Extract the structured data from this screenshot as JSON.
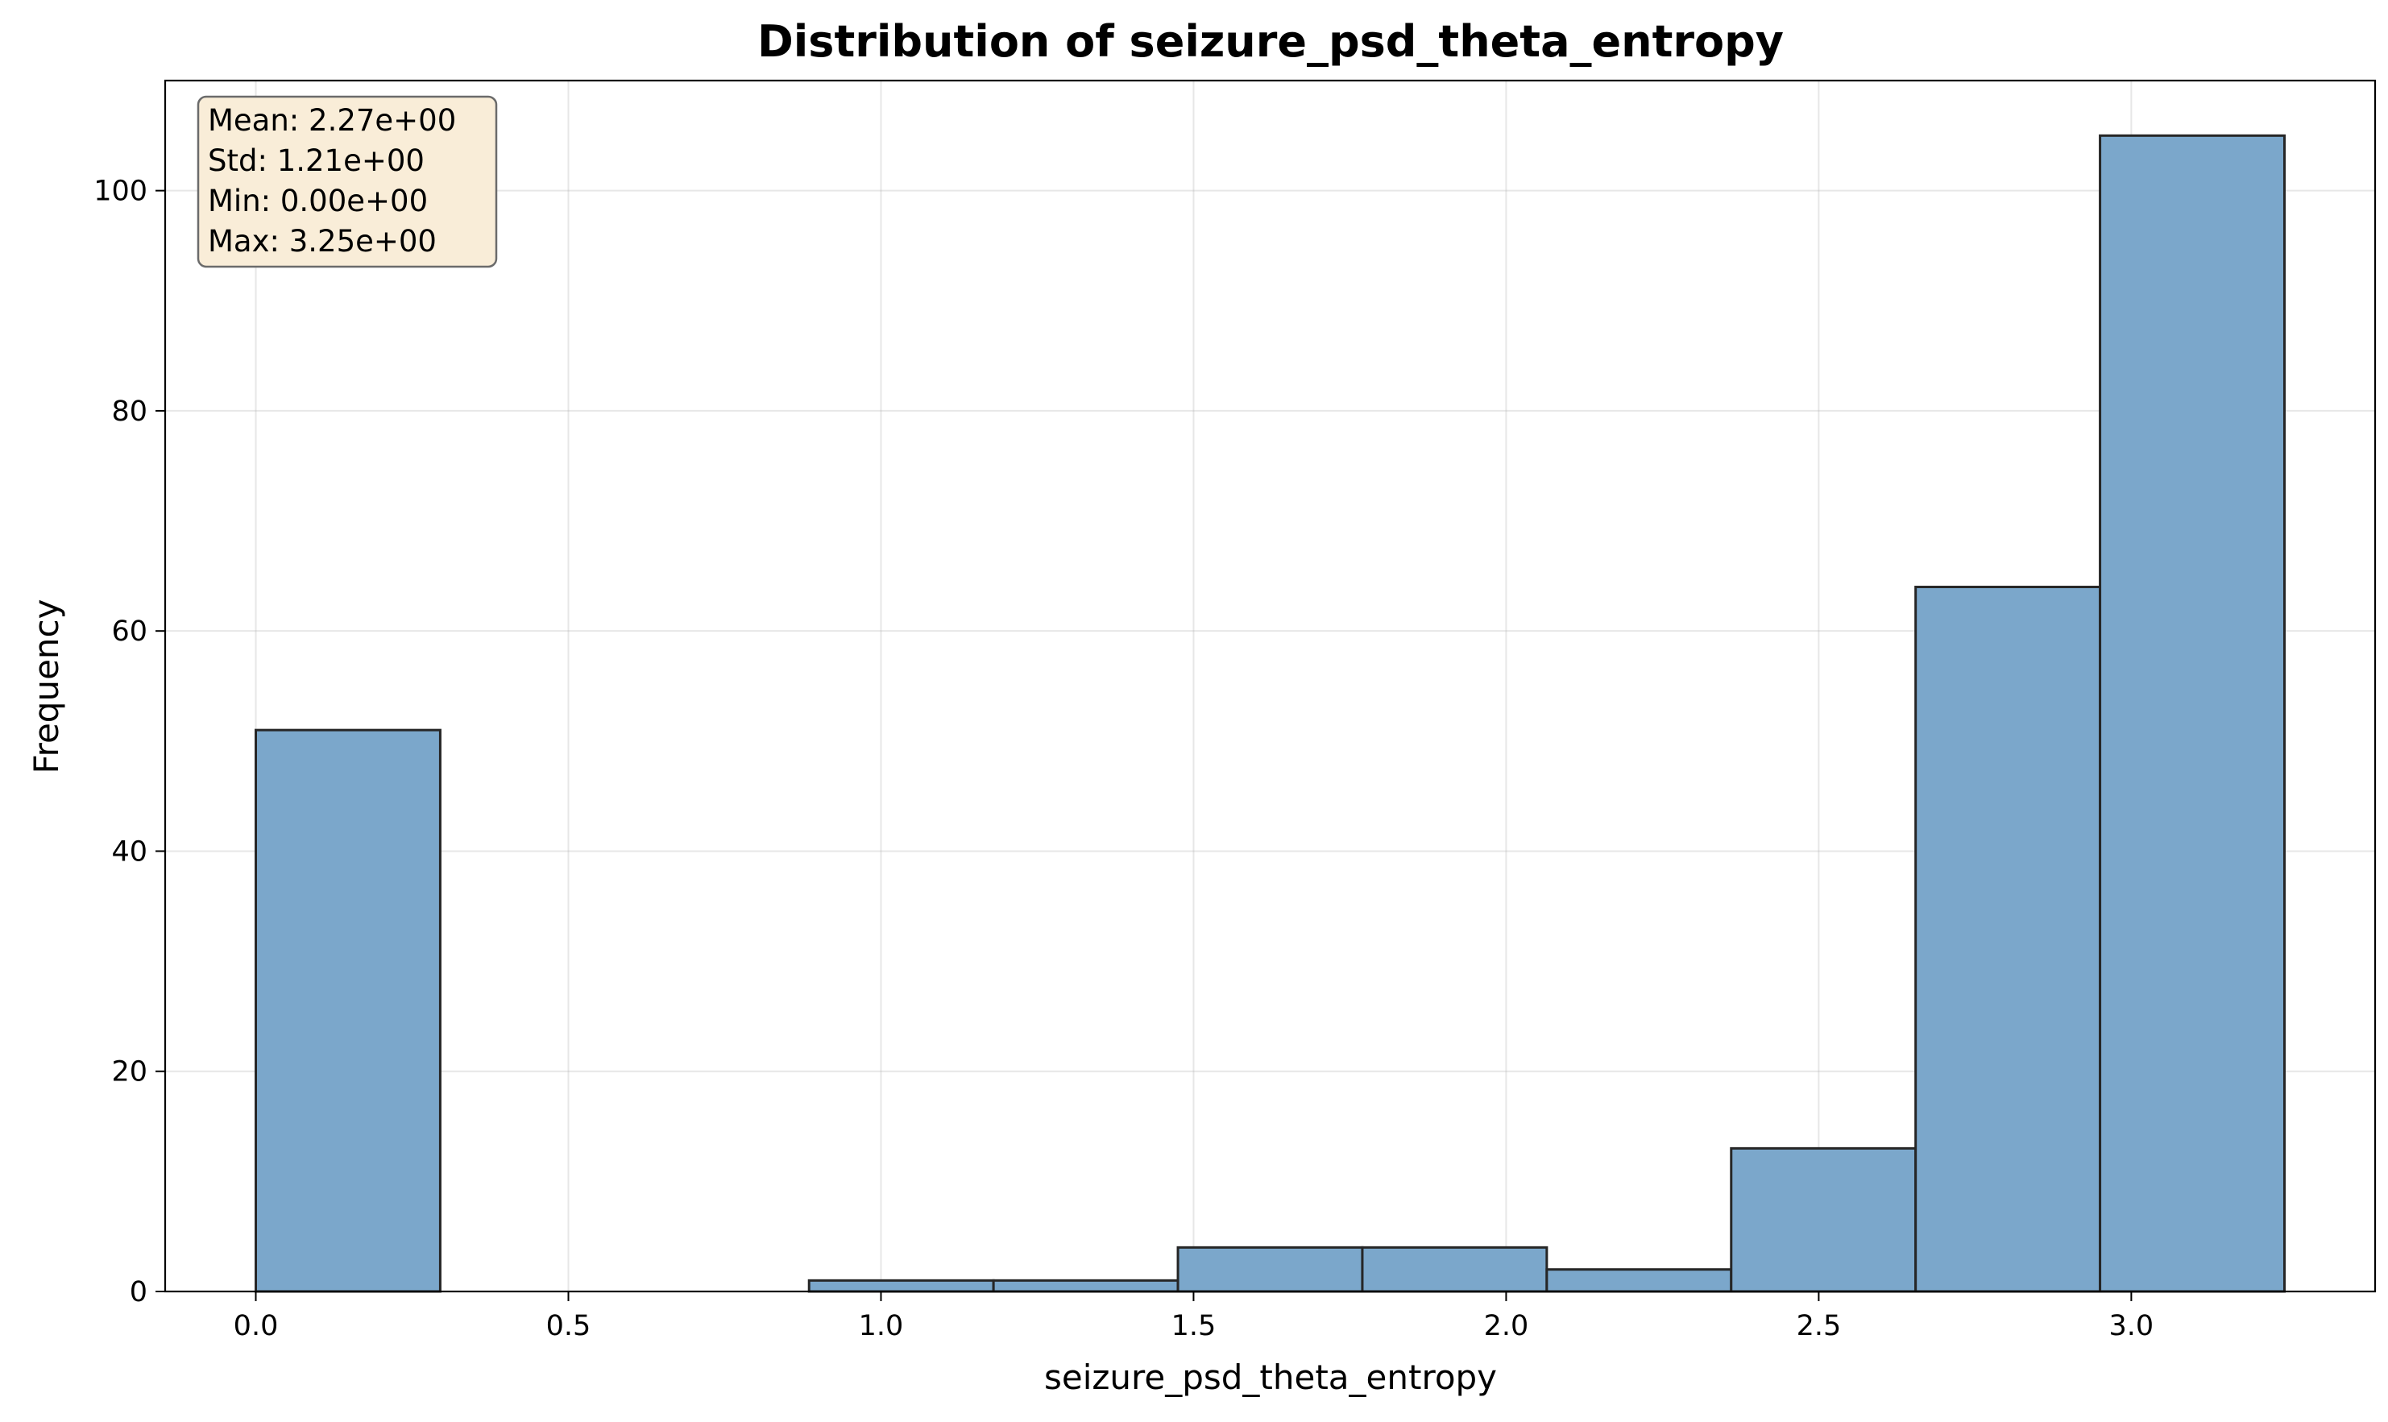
{
  "chart_data": {
    "type": "bar",
    "title": "Distribution of seizure_psd_theta_entropy",
    "xlabel": "seizure_psd_theta_entropy",
    "ylabel": "Frequency",
    "bin_edges": [
      0.0,
      0.295,
      0.59,
      0.885,
      1.18,
      1.475,
      1.77,
      2.065,
      2.36,
      2.655,
      2.95,
      3.245
    ],
    "values": [
      51,
      0,
      0,
      1,
      1,
      4,
      4,
      2,
      13,
      64,
      105
    ],
    "xlim": [
      -0.145,
      3.39
    ],
    "ylim": [
      0,
      110
    ],
    "xticks": [
      0.0,
      0.5,
      1.0,
      1.5,
      2.0,
      2.5,
      3.0
    ],
    "xtick_labels": [
      "0.0",
      "0.5",
      "1.0",
      "1.5",
      "2.0",
      "2.5",
      "3.0"
    ],
    "yticks": [
      0,
      20,
      40,
      60,
      80,
      100
    ],
    "ytick_labels": [
      "0",
      "20",
      "40",
      "60",
      "80",
      "100"
    ],
    "grid": true,
    "bar_color": "#7ba7cb",
    "bar_edge_color": "#262626",
    "stats_box": {
      "lines": [
        "Mean: 2.27e+00",
        "Std: 1.21e+00",
        "Min: 0.00e+00",
        "Max: 3.25e+00"
      ],
      "placement": "top-left",
      "background": "#f9edd8"
    }
  }
}
